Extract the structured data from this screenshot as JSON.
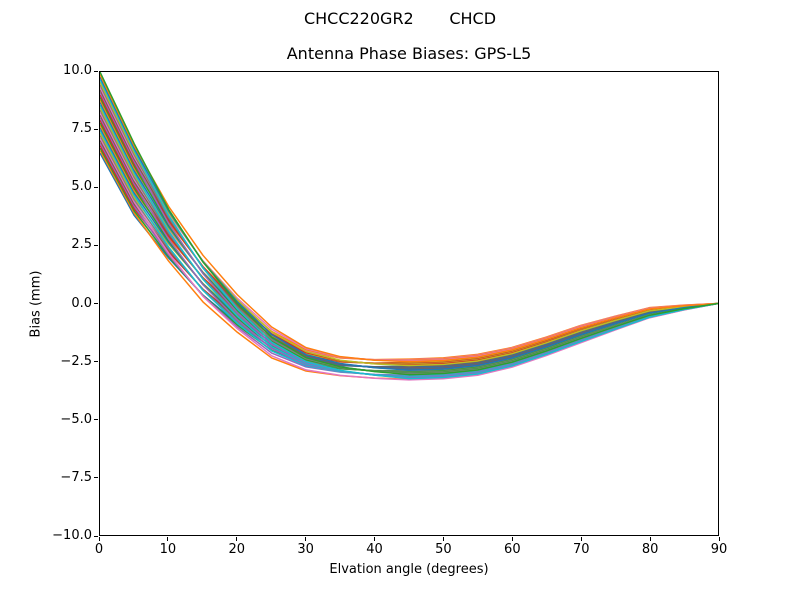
{
  "chart_data": {
    "type": "line",
    "suptitle": "CHCC220GR2       CHCD",
    "title": "Antenna Phase Biases: GPS-L5",
    "xlabel": "Elvation angle (degrees)",
    "ylabel": "Bias (mm)",
    "xlim": [
      0,
      90
    ],
    "ylim": [
      -10.0,
      10.0
    ],
    "x_tick_values": [
      0,
      10,
      20,
      30,
      40,
      50,
      60,
      70,
      80,
      90
    ],
    "x_tick_labels": [
      "0",
      "10",
      "20",
      "30",
      "40",
      "50",
      "60",
      "70",
      "80",
      "90"
    ],
    "y_tick_values": [
      10.0,
      7.5,
      5.0,
      2.5,
      0.0,
      -2.5,
      -5.0,
      -7.5,
      -10.0
    ],
    "y_tick_labels": [
      "10.0",
      "7.5",
      "5.0",
      "2.5",
      "0.0",
      "−2.5",
      "−5.0",
      "−7.5",
      "−10.0"
    ],
    "grid": false,
    "legend": null,
    "n_lines": 33,
    "x": [
      0,
      5,
      10,
      15,
      20,
      25,
      30,
      35,
      40,
      45,
      50,
      55,
      60,
      65,
      70,
      75,
      80,
      85,
      90
    ],
    "envelope_top": [
      10.0,
      6.9,
      4.3,
      2.2,
      0.5,
      -0.9,
      -1.8,
      -2.2,
      -2.35,
      -2.4,
      -2.35,
      -2.2,
      -1.9,
      -1.45,
      -0.95,
      -0.55,
      -0.18,
      -0.07,
      0.0
    ],
    "envelope_bottom": [
      6.5,
      3.8,
      1.75,
      0.0,
      -1.3,
      -2.4,
      -2.95,
      -3.15,
      -3.25,
      -3.3,
      -3.25,
      -3.1,
      -2.75,
      -2.25,
      -1.7,
      -1.15,
      -0.62,
      -0.28,
      0.0
    ],
    "line_colors": [
      "#1f77b4",
      "#ff7f0e",
      "#2ca02c",
      "#d62728",
      "#9467bd",
      "#8c564b",
      "#e377c2",
      "#7f7f7f",
      "#bcbd22",
      "#17becf"
    ],
    "line_width": 1.5
  }
}
